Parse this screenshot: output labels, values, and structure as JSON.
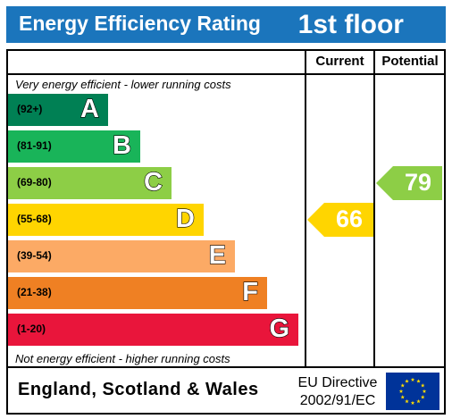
{
  "header": {
    "title": "Energy Efficiency Rating",
    "floor": "1st floor"
  },
  "columns": {
    "current": "Current",
    "potential": "Potential"
  },
  "notes": {
    "top": "Very energy efficient - lower running costs",
    "bottom": "Not energy efficient - higher running costs"
  },
  "chart_data": {
    "type": "bar",
    "title": "Energy Efficiency Rating",
    "categories": [
      "A",
      "B",
      "C",
      "D",
      "E",
      "F",
      "G"
    ],
    "ranges": [
      "(92+)",
      "(81-91)",
      "(69-80)",
      "(55-68)",
      "(39-54)",
      "(21-38)",
      "(1-20)"
    ],
    "colors": [
      "#008054",
      "#19b459",
      "#8dce46",
      "#ffd500",
      "#fcaa65",
      "#ef8023",
      "#e9153b"
    ],
    "current": {
      "value": 66,
      "band": "D",
      "color": "#ffd500"
    },
    "potential": {
      "value": 79,
      "band": "C",
      "color": "#8dce46"
    }
  },
  "footer": {
    "region": "England, Scotland & Wales",
    "directive_line1": "EU Directive",
    "directive_line2": "2002/91/EC"
  },
  "flag": {
    "icon": "eu-flag-icon",
    "background": "#003399",
    "star_color": "#ffdd00"
  }
}
